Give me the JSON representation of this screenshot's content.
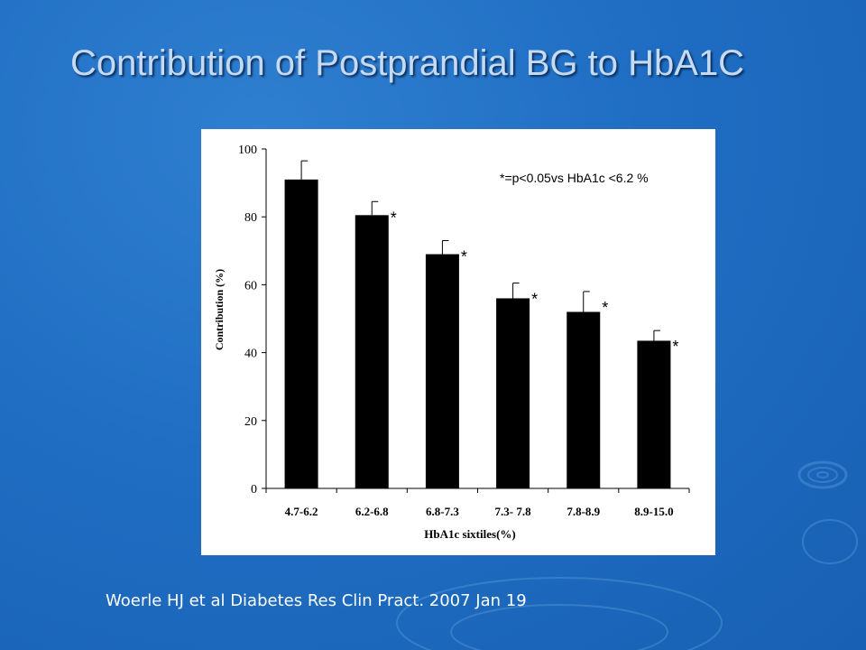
{
  "slide": {
    "title": "Contribution of Postprandial BG to HbA1C",
    "citation": "Woerle HJ et al Diabetes Res Clin Pract. 2007 Jan 19"
  },
  "colors": {
    "background": "#1f6ec4",
    "title": "#c6dbf2",
    "bars": "#000000"
  },
  "chart_data": {
    "type": "bar",
    "title": "",
    "xlabel": "HbA1c sixtiles(%)",
    "ylabel": "Contribution (%)",
    "ylim": [
      0,
      100
    ],
    "yticks": [
      0,
      20,
      40,
      60,
      80,
      100
    ],
    "categories": [
      "4.7-6.2",
      "6.2-6.8",
      "6.8-7.3",
      "7.3- 7.8",
      "7.8-8.9",
      "8.9-15.0"
    ],
    "values": [
      91,
      80.5,
      69,
      56,
      52,
      43.5
    ],
    "error_upper": [
      5.5,
      4,
      4,
      4.5,
      6,
      3
    ],
    "significance_markers": [
      "",
      "*",
      "*",
      "*",
      "*",
      "*"
    ],
    "annotation": "*=p<0.05vs HbA1c <6.2 %",
    "grid": false,
    "legend": "none"
  }
}
